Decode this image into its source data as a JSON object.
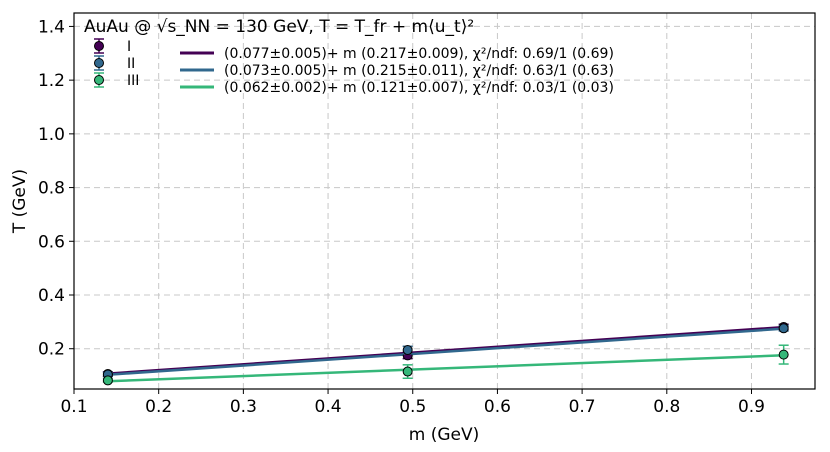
{
  "chart_data": {
    "type": "scatter",
    "title": "AuAu @ √s_NN = 130 GeV, T = T_fr + m⟨u_t⟩²",
    "xlabel": "m (GeV)",
    "ylabel": "T (GeV)",
    "xlim": [
      0.1,
      0.975
    ],
    "ylim": [
      0.05,
      1.45
    ],
    "xticks": [
      "0.1",
      "0.2",
      "0.3",
      "0.4",
      "0.5",
      "0.6",
      "0.7",
      "0.8",
      "0.9"
    ],
    "yticks": [
      "0.2",
      "0.4",
      "0.6",
      "0.8",
      "1.0",
      "1.2",
      "1.4"
    ],
    "grid": true,
    "legend_placement": "top-left",
    "series": [
      {
        "name": "I",
        "color": "#440154",
        "points": [
          {
            "x": 0.14,
            "y": 0.106,
            "err": 0.008
          },
          {
            "x": 0.494,
            "y": 0.175,
            "err": 0.012
          },
          {
            "x": 0.938,
            "y": 0.281,
            "err": 0.01
          }
        ]
      },
      {
        "name": "II",
        "color": "#31688e",
        "points": [
          {
            "x": 0.14,
            "y": 0.104,
            "err": 0.008
          },
          {
            "x": 0.494,
            "y": 0.195,
            "err": 0.014
          },
          {
            "x": 0.938,
            "y": 0.276,
            "err": 0.01
          }
        ]
      },
      {
        "name": "III",
        "color": "#35b779",
        "points": [
          {
            "x": 0.14,
            "y": 0.082,
            "err": 0.006
          },
          {
            "x": 0.494,
            "y": 0.115,
            "err": 0.025
          },
          {
            "x": 0.938,
            "y": 0.178,
            "err": 0.035
          }
        ]
      }
    ],
    "fits": [
      {
        "color": "#440154",
        "intercept": 0.077,
        "slope": 0.217,
        "label": "(0.077±0.005)+ m (0.217±0.009),  χ²/ndf: 0.69/1 (0.69)"
      },
      {
        "color": "#31688e",
        "intercept": 0.073,
        "slope": 0.215,
        "label": "(0.073±0.005)+ m (0.215±0.011),  χ²/ndf: 0.63/1 (0.63)"
      },
      {
        "color": "#35b779",
        "intercept": 0.062,
        "slope": 0.121,
        "label": "(0.062±0.002)+ m (0.121±0.007),  χ²/ndf: 0.03/1 (0.03)"
      }
    ]
  }
}
